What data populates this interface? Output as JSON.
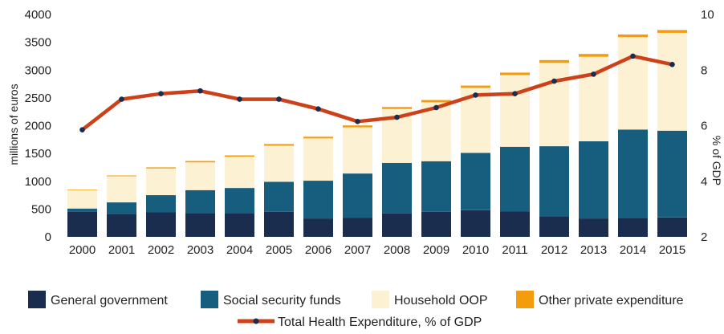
{
  "chart_data": {
    "type": "bar",
    "stacked": true,
    "categories": [
      "2000",
      "2001",
      "2002",
      "2003",
      "2004",
      "2005",
      "2006",
      "2007",
      "2008",
      "2009",
      "2010",
      "2011",
      "2012",
      "2013",
      "2014",
      "2015"
    ],
    "ylabel": "millions of euros",
    "y2label": "% of GDP",
    "ylim": [
      0,
      4000
    ],
    "y_ticks": [
      0,
      500,
      1000,
      1500,
      2000,
      2500,
      3000,
      3500,
      4000
    ],
    "y2lim": [
      2,
      10
    ],
    "y2_ticks": [
      2,
      4,
      6,
      8,
      10
    ],
    "grid": false,
    "legend_position": "bottom",
    "series": [
      {
        "name": "General government",
        "color": "#1b2d4f",
        "values": [
          450,
          410,
          440,
          430,
          420,
          450,
          330,
          340,
          420,
          450,
          480,
          460,
          370,
          330,
          340,
          350
        ]
      },
      {
        "name": "Social security funds",
        "color": "#175d7e",
        "values": [
          60,
          210,
          310,
          410,
          460,
          540,
          680,
          800,
          910,
          910,
          1030,
          1160,
          1260,
          1390,
          1590,
          1560
        ]
      },
      {
        "name": "Household OOP",
        "color": "#fdf1d3",
        "values": [
          330,
          470,
          480,
          500,
          560,
          650,
          760,
          830,
          970,
          1060,
          1170,
          1290,
          1500,
          1520,
          1660,
          1760
        ]
      },
      {
        "name": "Other private expenditure",
        "color": "#f39c0d",
        "values": [
          10,
          15,
          20,
          25,
          25,
          30,
          30,
          35,
          35,
          40,
          40,
          45,
          50,
          50,
          50,
          50
        ]
      }
    ],
    "line": {
      "name": "Total Health Expenditure, % of GDP",
      "color": "#cc4119",
      "axis": "right",
      "values": [
        5.85,
        6.95,
        7.15,
        7.25,
        6.95,
        6.95,
        6.6,
        6.15,
        6.3,
        6.65,
        7.1,
        7.15,
        7.6,
        7.85,
        8.5,
        8.2
      ]
    }
  }
}
